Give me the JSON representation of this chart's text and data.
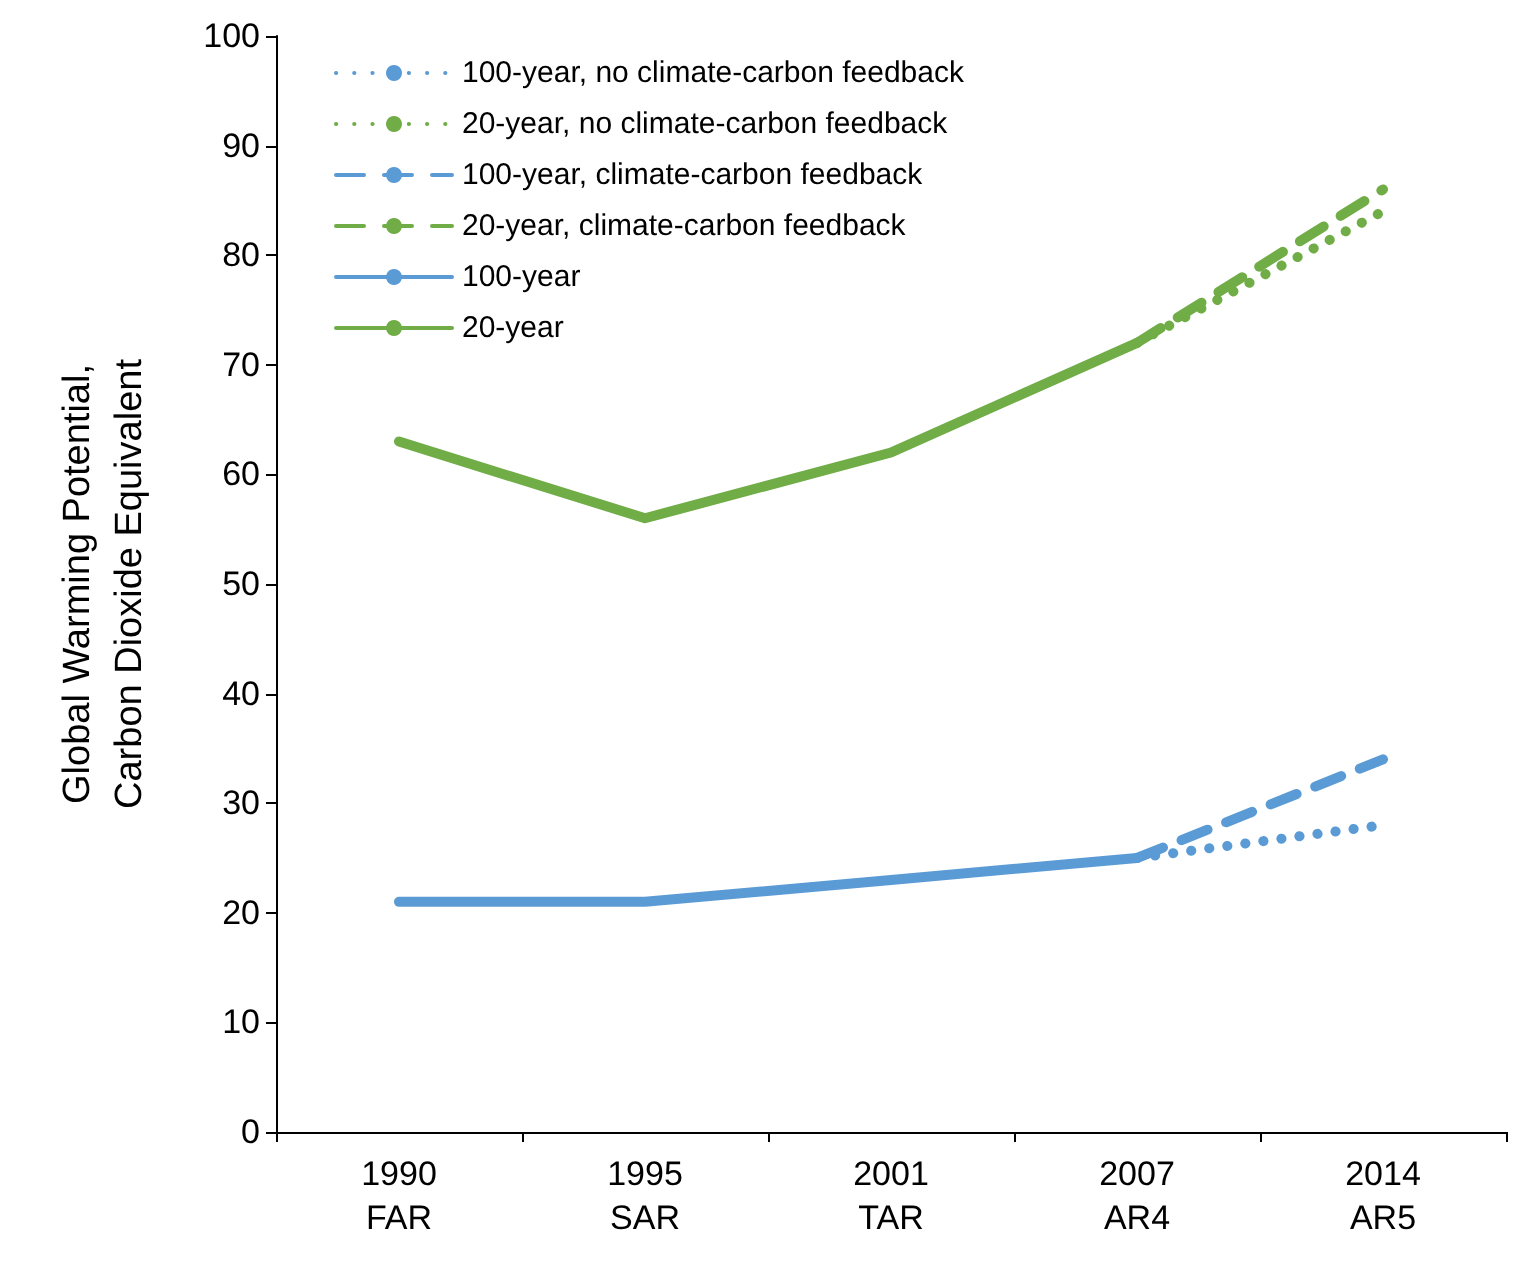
{
  "chart_data": {
    "type": "line",
    "ylabel": "Global Warming Potential,\nCarbon Dioxide Equivalent",
    "categories": [
      "1990\nFAR",
      "1995\nSAR",
      "2001\nTAR",
      "2007\nAR4",
      "2014\nAR5"
    ],
    "series": [
      {
        "name": "100-year, no climate-carbon feedback",
        "color": "#5b9bd5",
        "line_style": "dotted",
        "values": [
          null,
          null,
          null,
          25,
          28
        ]
      },
      {
        "name": "20-year, no climate-carbon feedback",
        "color": "#70ad47",
        "line_style": "dotted",
        "values": [
          null,
          null,
          null,
          72,
          84
        ]
      },
      {
        "name": "100-year, climate-carbon feedback",
        "color": "#5b9bd5",
        "line_style": "dashed",
        "values": [
          null,
          null,
          null,
          25,
          34
        ]
      },
      {
        "name": "20-year, climate-carbon feedback",
        "color": "#70ad47",
        "line_style": "dashed",
        "values": [
          null,
          null,
          null,
          72,
          86
        ]
      },
      {
        "name": "100-year",
        "color": "#5b9bd5",
        "line_style": "solid",
        "values": [
          21,
          21,
          23,
          25,
          null
        ]
      },
      {
        "name": "20-year",
        "color": "#70ad47",
        "line_style": "solid",
        "values": [
          63,
          56,
          62,
          72,
          null
        ]
      }
    ],
    "ylim": [
      0,
      100
    ],
    "yticks": [
      0,
      10,
      20,
      30,
      40,
      50,
      60,
      70,
      80,
      90,
      100
    ],
    "grid": false,
    "legend": "top left",
    "marker": "none"
  }
}
